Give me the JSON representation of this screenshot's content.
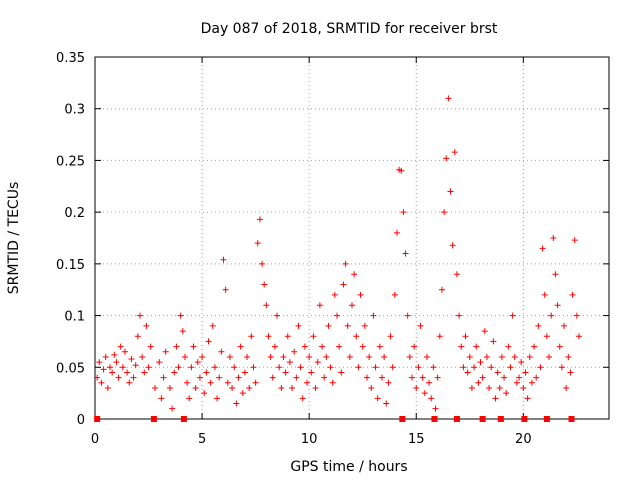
{
  "chart_data": {
    "type": "scatter",
    "title": "Day 087 of 2018, SRMTID for receiver brst",
    "xlabel": "GPS time / hours",
    "ylabel": "SRMTID / TECUs",
    "xlim": [
      0,
      24
    ],
    "ylim": [
      0,
      0.35
    ],
    "xticks": [
      0,
      5,
      10,
      15,
      20
    ],
    "yticks": [
      0,
      0.05,
      0.1,
      0.15,
      0.2,
      0.25,
      0.3,
      0.35
    ],
    "xtick_labels": [
      "0",
      "5",
      "10",
      "15",
      "20"
    ],
    "ytick_labels": [
      "0",
      "0.05",
      "0.1",
      "0.15",
      "0.2",
      "0.25",
      "0.3",
      "0.35"
    ],
    "grid": true,
    "marker": "+",
    "color": "#ff0000",
    "points": [
      [
        0.1,
        0.04
      ],
      [
        0.2,
        0.055
      ],
      [
        0.3,
        0.035
      ],
      [
        0.4,
        0.048
      ],
      [
        0.5,
        0.06
      ],
      [
        0.6,
        0.03
      ],
      [
        0.7,
        0.05
      ],
      [
        0.8,
        0.045
      ],
      [
        0.9,
        0.062
      ],
      [
        1.0,
        0.055
      ],
      [
        1.1,
        0.04
      ],
      [
        1.2,
        0.07
      ],
      [
        1.3,
        0.05
      ],
      [
        1.4,
        0.065
      ],
      [
        1.5,
        0.045
      ],
      [
        1.6,
        0.035
      ],
      [
        1.7,
        0.058
      ],
      [
        1.8,
        0.04
      ],
      [
        1.9,
        0.052
      ],
      [
        2.0,
        0.08
      ],
      [
        2.1,
        0.1
      ],
      [
        2.2,
        0.06
      ],
      [
        2.3,
        0.045
      ],
      [
        2.4,
        0.09
      ],
      [
        2.5,
        0.05
      ],
      [
        2.6,
        0.07
      ],
      [
        2.8,
        0.03
      ],
      [
        3.0,
        0.055
      ],
      [
        3.1,
        0.02
      ],
      [
        3.2,
        0.04
      ],
      [
        3.3,
        0.065
      ],
      [
        3.5,
        0.03
      ],
      [
        3.6,
        0.01
      ],
      [
        3.7,
        0.045
      ],
      [
        3.8,
        0.07
      ],
      [
        3.9,
        0.05
      ],
      [
        4.0,
        0.1
      ],
      [
        4.1,
        0.085
      ],
      [
        4.2,
        0.06
      ],
      [
        4.3,
        0.035
      ],
      [
        4.4,
        0.02
      ],
      [
        4.5,
        0.05
      ],
      [
        4.6,
        0.07
      ],
      [
        4.7,
        0.03
      ],
      [
        4.8,
        0.055
      ],
      [
        4.9,
        0.04
      ],
      [
        5.0,
        0.06
      ],
      [
        5.1,
        0.025
      ],
      [
        5.2,
        0.045
      ],
      [
        5.3,
        0.075
      ],
      [
        5.4,
        0.035
      ],
      [
        5.5,
        0.09
      ],
      [
        5.6,
        0.05
      ],
      [
        5.7,
        0.02
      ],
      [
        5.8,
        0.04
      ],
      [
        5.9,
        0.065
      ],
      [
        6.0,
        0.154
      ],
      [
        6.1,
        0.125
      ],
      [
        6.2,
        0.035
      ],
      [
        6.3,
        0.06
      ],
      [
        6.4,
        0.03
      ],
      [
        6.5,
        0.05
      ],
      [
        6.6,
        0.015
      ],
      [
        6.7,
        0.04
      ],
      [
        6.8,
        0.07
      ],
      [
        6.9,
        0.025
      ],
      [
        7.0,
        0.045
      ],
      [
        7.1,
        0.06
      ],
      [
        7.2,
        0.03
      ],
      [
        7.3,
        0.08
      ],
      [
        7.4,
        0.05
      ],
      [
        7.5,
        0.035
      ],
      [
        7.6,
        0.17
      ],
      [
        7.7,
        0.193
      ],
      [
        7.8,
        0.15
      ],
      [
        7.9,
        0.13
      ],
      [
        8.0,
        0.11
      ],
      [
        8.1,
        0.08
      ],
      [
        8.2,
        0.06
      ],
      [
        8.3,
        0.04
      ],
      [
        8.4,
        0.07
      ],
      [
        8.5,
        0.1
      ],
      [
        8.6,
        0.05
      ],
      [
        8.7,
        0.03
      ],
      [
        8.8,
        0.06
      ],
      [
        8.9,
        0.045
      ],
      [
        9.0,
        0.08
      ],
      [
        9.1,
        0.055
      ],
      [
        9.2,
        0.03
      ],
      [
        9.3,
        0.065
      ],
      [
        9.4,
        0.04
      ],
      [
        9.5,
        0.09
      ],
      [
        9.6,
        0.05
      ],
      [
        9.7,
        0.02
      ],
      [
        9.8,
        0.07
      ],
      [
        9.9,
        0.035
      ],
      [
        10.0,
        0.06
      ],
      [
        10.1,
        0.045
      ],
      [
        10.2,
        0.08
      ],
      [
        10.3,
        0.03
      ],
      [
        10.4,
        0.055
      ],
      [
        10.5,
        0.11
      ],
      [
        10.6,
        0.07
      ],
      [
        10.7,
        0.04
      ],
      [
        10.8,
        0.06
      ],
      [
        10.9,
        0.09
      ],
      [
        11.0,
        0.05
      ],
      [
        11.1,
        0.035
      ],
      [
        11.2,
        0.12
      ],
      [
        11.3,
        0.1
      ],
      [
        11.4,
        0.07
      ],
      [
        11.5,
        0.045
      ],
      [
        11.6,
        0.13
      ],
      [
        11.7,
        0.15
      ],
      [
        11.8,
        0.09
      ],
      [
        11.9,
        0.06
      ],
      [
        12.0,
        0.11
      ],
      [
        12.1,
        0.14
      ],
      [
        12.2,
        0.08
      ],
      [
        12.3,
        0.05
      ],
      [
        12.4,
        0.12
      ],
      [
        12.5,
        0.07
      ],
      [
        12.6,
        0.09
      ],
      [
        12.7,
        0.04
      ],
      [
        12.8,
        0.06
      ],
      [
        12.9,
        0.03
      ],
      [
        13.0,
        0.1
      ],
      [
        13.1,
        0.05
      ],
      [
        13.2,
        0.02
      ],
      [
        13.3,
        0.07
      ],
      [
        13.4,
        0.04
      ],
      [
        13.5,
        0.06
      ],
      [
        13.6,
        0.015
      ],
      [
        13.7,
        0.035
      ],
      [
        13.8,
        0.08
      ],
      [
        13.9,
        0.05
      ],
      [
        14.0,
        0.12
      ],
      [
        14.1,
        0.18
      ],
      [
        14.2,
        0.241
      ],
      [
        14.3,
        0.24
      ],
      [
        14.4,
        0.2
      ],
      [
        14.5,
        0.16
      ],
      [
        14.6,
        0.1
      ],
      [
        14.7,
        0.06
      ],
      [
        14.8,
        0.04
      ],
      [
        14.9,
        0.07
      ],
      [
        15.0,
        0.03
      ],
      [
        15.1,
        0.05
      ],
      [
        15.2,
        0.09
      ],
      [
        15.3,
        0.04
      ],
      [
        15.4,
        0.025
      ],
      [
        15.5,
        0.06
      ],
      [
        15.6,
        0.035
      ],
      [
        15.7,
        0.02
      ],
      [
        15.8,
        0.05
      ],
      [
        15.9,
        0.01
      ],
      [
        16.0,
        0.04
      ],
      [
        16.1,
        0.08
      ],
      [
        16.2,
        0.125
      ],
      [
        16.3,
        0.2
      ],
      [
        16.4,
        0.252
      ],
      [
        16.5,
        0.31
      ],
      [
        16.6,
        0.22
      ],
      [
        16.7,
        0.168
      ],
      [
        16.8,
        0.258
      ],
      [
        16.9,
        0.14
      ],
      [
        17.0,
        0.1
      ],
      [
        17.1,
        0.07
      ],
      [
        17.2,
        0.05
      ],
      [
        17.3,
        0.08
      ],
      [
        17.4,
        0.045
      ],
      [
        17.5,
        0.06
      ],
      [
        17.6,
        0.03
      ],
      [
        17.7,
        0.05
      ],
      [
        17.8,
        0.07
      ],
      [
        17.9,
        0.035
      ],
      [
        18.0,
        0.055
      ],
      [
        18.1,
        0.04
      ],
      [
        18.2,
        0.085
      ],
      [
        18.3,
        0.06
      ],
      [
        18.4,
        0.03
      ],
      [
        18.5,
        0.05
      ],
      [
        18.6,
        0.075
      ],
      [
        18.7,
        0.02
      ],
      [
        18.8,
        0.045
      ],
      [
        18.9,
        0.03
      ],
      [
        19.0,
        0.06
      ],
      [
        19.1,
        0.04
      ],
      [
        19.2,
        0.025
      ],
      [
        19.3,
        0.07
      ],
      [
        19.4,
        0.05
      ],
      [
        19.5,
        0.1
      ],
      [
        19.6,
        0.06
      ],
      [
        19.7,
        0.035
      ],
      [
        19.8,
        0.04
      ],
      [
        19.9,
        0.055
      ],
      [
        20.0,
        0.03
      ],
      [
        20.1,
        0.045
      ],
      [
        20.2,
        0.02
      ],
      [
        20.3,
        0.06
      ],
      [
        20.4,
        0.035
      ],
      [
        20.5,
        0.07
      ],
      [
        20.6,
        0.04
      ],
      [
        20.7,
        0.09
      ],
      [
        20.8,
        0.05
      ],
      [
        20.9,
        0.165
      ],
      [
        21.0,
        0.12
      ],
      [
        21.1,
        0.08
      ],
      [
        21.2,
        0.06
      ],
      [
        21.3,
        0.1
      ],
      [
        21.4,
        0.175
      ],
      [
        21.5,
        0.14
      ],
      [
        21.6,
        0.11
      ],
      [
        21.7,
        0.07
      ],
      [
        21.8,
        0.05
      ],
      [
        21.9,
        0.09
      ],
      [
        22.0,
        0.03
      ],
      [
        22.1,
        0.06
      ],
      [
        22.2,
        0.045
      ],
      [
        22.3,
        0.12
      ],
      [
        22.4,
        0.173
      ],
      [
        22.5,
        0.1
      ],
      [
        22.6,
        0.08
      ]
    ],
    "bottom_squares_x": [
      0.1,
      2.75,
      4.15,
      14.35,
      15.85,
      16.9,
      18.1,
      18.95,
      20.05,
      21.1,
      22.25
    ]
  }
}
